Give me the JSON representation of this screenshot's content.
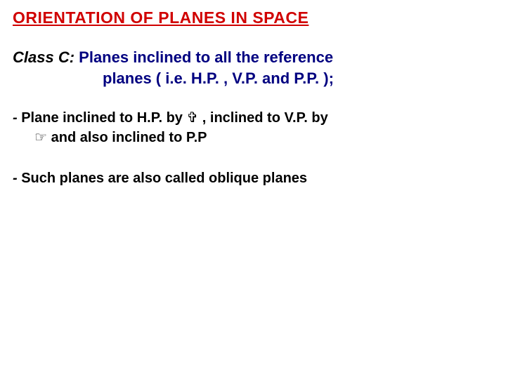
{
  "title": "ORIENTATION OF PLANES IN SPACE",
  "class": {
    "label": "Class  C: ",
    "line1": "Planes  inclined  to  all  the  reference",
    "line2": "planes ( i.e. H.P. , V.P. and P.P. );"
  },
  "bullets": [
    {
      "prefix": "- ",
      "text1": "Plane inclined to H.P. by ",
      "sym1": "✞",
      "text2": " , inclined to V.P. by ",
      "sym2": "☞",
      "text3": "  and also inclined to P.P"
    },
    {
      "prefix": "- ",
      "text1": "Such planes are also called oblique planes",
      "sym1": "",
      "text2": "",
      "sym2": "",
      "text3": ""
    }
  ],
  "colors": {
    "title": "#d00000",
    "classContent": "#000080",
    "bodyText": "#000000",
    "background": "#ffffff"
  },
  "fonts": {
    "titleSize": 23,
    "classSize": 22,
    "bulletSize": 20
  }
}
